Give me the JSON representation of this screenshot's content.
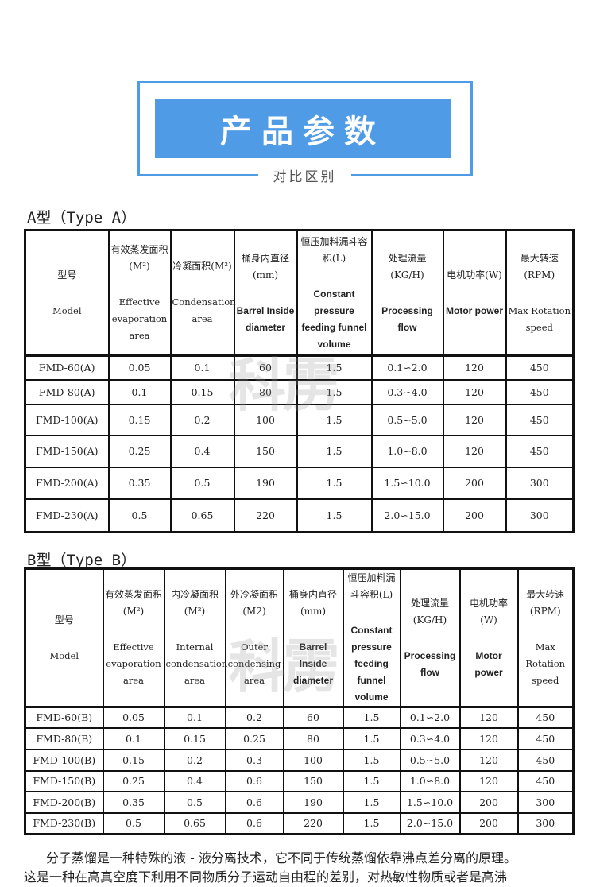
{
  "header": {
    "title": "产品参数",
    "subtitle": "对比区别",
    "accent_color": "#4f9be6"
  },
  "watermark": "科雳",
  "type_a": {
    "title": "A型（Type A）",
    "headers": [
      {
        "zh": "型号",
        "en": "Model",
        "bold": false
      },
      {
        "zh": "有效蒸发面积(M²)",
        "en": "Effective evaporation area",
        "bold": false
      },
      {
        "zh": "冷凝面积(M²)",
        "en": "Condensation area",
        "bold": false
      },
      {
        "zh": "桶身内直径(mm)",
        "en": "Barrel Inside diameter",
        "bold": true
      },
      {
        "zh": "恒压加料漏斗容积(L)",
        "en": "Constant pressure feeding funnel volume",
        "bold": true
      },
      {
        "zh": "处理流量(KG/H)",
        "en": "Processing flow",
        "bold": true
      },
      {
        "zh": "电机功率(W)",
        "en": "Motor power",
        "bold": true
      },
      {
        "zh": "最大转速 (RPM)",
        "en": "Max Rotation speed",
        "bold": false
      }
    ],
    "rows": [
      [
        "FMD-60(A)",
        "0.05",
        "0.1",
        "60",
        "1.5",
        "0.1∽2.0",
        "120",
        "450"
      ],
      [
        "FMD-80(A)",
        "0.1",
        "0.15",
        "80",
        "1.5",
        "0.3∽4.0",
        "120",
        "450"
      ],
      [
        "FMD-100(A)",
        "0.15",
        "0.2",
        "100",
        "1.5",
        "0.5∽5.0",
        "120",
        "450"
      ],
      [
        "FMD-150(A)",
        "0.25",
        "0.4",
        "150",
        "1.5",
        "1.0∽8.0",
        "120",
        "450"
      ],
      [
        "FMD-200(A)",
        "0.35",
        "0.5",
        "190",
        "1.5",
        "1.5∽10.0",
        "200",
        "300"
      ],
      [
        "FMD-230(A)",
        "0.5",
        "0.65",
        "220",
        "1.5",
        "2.0∽15.0",
        "200",
        "300"
      ]
    ]
  },
  "type_b": {
    "title": "B型（Type B）",
    "headers": [
      {
        "zh": "型号",
        "en": "Model",
        "bold": false
      },
      {
        "zh": "有效蒸发面积(M²)",
        "en": "Effective evaporation area",
        "bold": false
      },
      {
        "zh": "内冷凝面积(M²)",
        "en": "Internal condensation area",
        "bold": false
      },
      {
        "zh": "外冷凝面积(M2)",
        "en": "Outer condensing area",
        "bold": false
      },
      {
        "zh": "桶身内直径(mm)",
        "en": "Barrel Inside diameter",
        "bold": true
      },
      {
        "zh": "恒压加料漏斗容积(L)",
        "en": "Constant pressure feeding funnel volume",
        "bold": true
      },
      {
        "zh": "处理流量(KG/H)",
        "en": "Processing flow",
        "bold": true
      },
      {
        "zh": "电机功率(W)",
        "en": "Motor power",
        "bold": true
      },
      {
        "zh": "最大转速 (RPM)",
        "en": "Max Rotation speed",
        "bold": false
      }
    ],
    "rows": [
      [
        "FMD-60(B)",
        "0.05",
        "0.1",
        "0.2",
        "60",
        "1.5",
        "0.1∽2.0",
        "120",
        "450"
      ],
      [
        "FMD-80(B)",
        "0.1",
        "0.15",
        "0.25",
        "80",
        "1.5",
        "0.3∽4.0",
        "120",
        "450"
      ],
      [
        "FMD-100(B)",
        "0.15",
        "0.2",
        "0.3",
        "100",
        "1.5",
        "0.5∽5.0",
        "120",
        "450"
      ],
      [
        "FMD-150(B)",
        "0.25",
        "0.4",
        "0.6",
        "150",
        "1.5",
        "1.0∽8.0",
        "120",
        "450"
      ],
      [
        "FMD-200(B)",
        "0.35",
        "0.5",
        "0.6",
        "190",
        "1.5",
        "1.5∽10.0",
        "200",
        "300"
      ],
      [
        "FMD-230(B)",
        "0.5",
        "0.65",
        "0.6",
        "220",
        "1.5",
        "2.0∽15.0",
        "200",
        "300"
      ]
    ]
  },
  "description": {
    "line1": "分子蒸馏是一种特殊的液 - 液分离技术，它不同于传统蒸馏依靠沸点差分离的原理。",
    "line2": "这是一种在高真空度下利用不同物质分子运动自由程的差别，对热敏性物质或者是高沸"
  }
}
